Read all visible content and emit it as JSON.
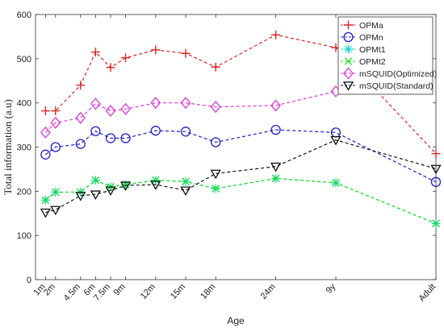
{
  "chart_data": {
    "type": "line",
    "title": "",
    "xlabel": "Age",
    "ylabel": "Total information (a.u)",
    "ylim": [
      0,
      600
    ],
    "yticks": [
      0,
      100,
      200,
      300,
      400,
      500,
      600
    ],
    "grid": false,
    "legend_position": "top-right",
    "categories": [
      "1m",
      "2m",
      "4.5m",
      "6m",
      "7.5m",
      "9m",
      "12m",
      "15m",
      "18m",
      "24m",
      "9y",
      "Adult"
    ],
    "category_positions": [
      1,
      2,
      4.5,
      6,
      7.5,
      9,
      12,
      15,
      18,
      24,
      30,
      40
    ],
    "series": [
      {
        "name": "OPMa",
        "marker": "plus",
        "color": "#d62728",
        "values": [
          382,
          382,
          440,
          515,
          480,
          502,
          520,
          512,
          481,
          554,
          525,
          285
        ]
      },
      {
        "name": "OPMn",
        "marker": "circle",
        "color": "#1f1fbf",
        "values": [
          283,
          300,
          307,
          336,
          320,
          320,
          337,
          335,
          311,
          339,
          333,
          221
        ]
      },
      {
        "name": "OPMt1",
        "marker": "asterisk",
        "color": "#17d4d4",
        "values": [
          180,
          198,
          198,
          225,
          210,
          215,
          225,
          222,
          206,
          229,
          219,
          127
        ]
      },
      {
        "name": "OPMt2",
        "marker": "x",
        "color": "#22dd22",
        "values": [
          180,
          198,
          198,
          225,
          210,
          215,
          225,
          222,
          206,
          229,
          219,
          127
        ]
      },
      {
        "name": "mSQUID(Optimized)",
        "marker": "diamond",
        "color": "#d63bd6",
        "values": [
          333,
          355,
          366,
          398,
          382,
          386,
          400,
          400,
          391,
          394,
          426,
          null
        ]
      },
      {
        "name": "mSQUID(Standard)",
        "marker": "triangle-down",
        "color": "#111111",
        "values": [
          152,
          158,
          190,
          193,
          202,
          213,
          215,
          202,
          240,
          256,
          316,
          251
        ]
      }
    ]
  }
}
